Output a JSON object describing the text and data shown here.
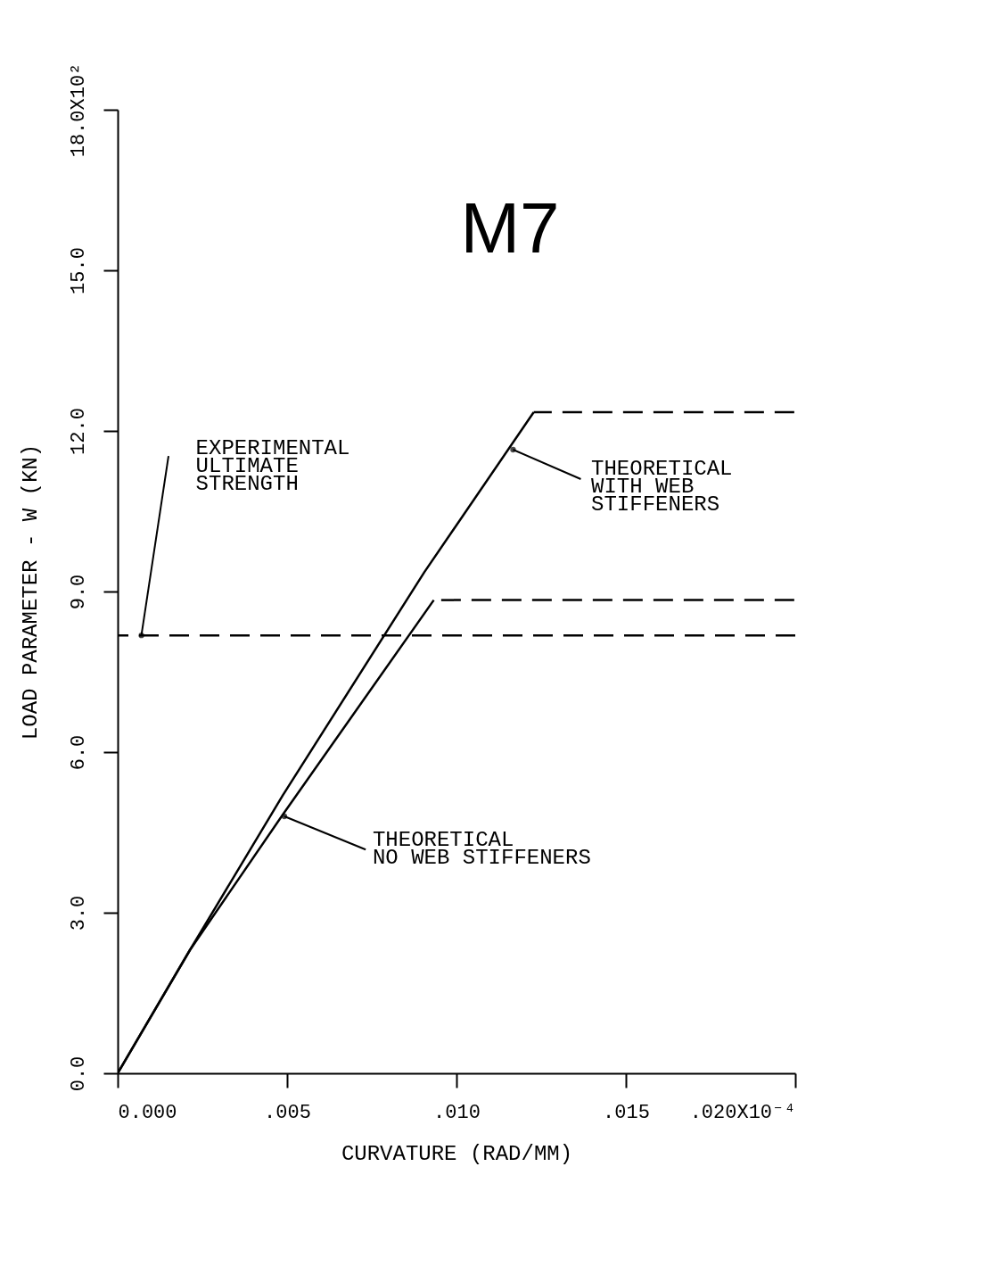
{
  "chart_data": {
    "type": "line",
    "title": "M7",
    "xlabel": "CURVATURE (RAD/MM)",
    "ylabel": "LOAD PARAMETER - W (KN)",
    "xlim": [
      0,
      0.02
    ],
    "ylim": [
      0,
      18
    ],
    "xticks": [
      {
        "value": 0,
        "label": "0.000"
      },
      {
        "value": 0.005,
        "label": ".005"
      },
      {
        "value": 0.01,
        "label": ".010"
      },
      {
        "value": 0.015,
        "label": ".015"
      },
      {
        "value": 0.02,
        "label": ".020X10⁻⁴"
      }
    ],
    "yticks": [
      {
        "value": 0,
        "label": "0.0"
      },
      {
        "value": 3,
        "label": "3.0"
      },
      {
        "value": 6,
        "label": "6.0"
      },
      {
        "value": 9,
        "label": "9.0"
      },
      {
        "value": 12,
        "label": "12.0"
      },
      {
        "value": 15,
        "label": "15.0"
      },
      {
        "value": 18,
        "label": "18.0X10²"
      }
    ],
    "series": [
      {
        "color": "#000000",
        "line_style": "solid",
        "x": [
          0,
          0.00213,
          0.00487,
          0.00905,
          0.01228
        ],
        "values": [
          0,
          2.3,
          5.19,
          9.36,
          12.35
        ]
      },
      {
        "color": "#000000",
        "line_style": "dashed",
        "x": [
          0.01228,
          0.01997
        ],
        "values": [
          12.35,
          12.35
        ]
      },
      {
        "color": "#000000",
        "line_style": "solid",
        "x": [
          0,
          0.00213,
          0.00487,
          0.00933
        ],
        "values": [
          0,
          2.3,
          4.83,
          8.84
        ]
      },
      {
        "color": "#000000",
        "line_style": "dashed",
        "x": [
          0.00933,
          0.01997
        ],
        "values": [
          8.84,
          8.84
        ]
      }
    ],
    "ref_lines": [
      {
        "axis": "y",
        "value": 8.18,
        "label": "EXPERIMENTAL\nULTIMATE\nSTRENGTH",
        "color": "#000000",
        "line_style": "dashed"
      }
    ],
    "annotations": [
      {
        "text": "THEORETICAL\nWITH WEB\nSTIFFENERS",
        "x": 0.01167,
        "y": 11.65
      },
      {
        "text": "THEORETICAL\nNO WEB STIFFENERS",
        "x": 0.00492,
        "y": 4.8
      }
    ],
    "grid": false
  }
}
